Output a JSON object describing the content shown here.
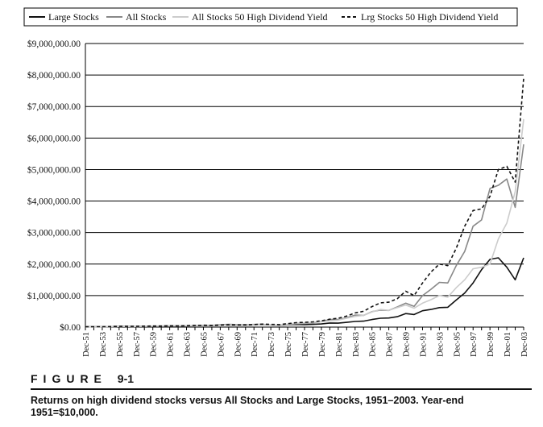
{
  "chart_data": {
    "type": "line",
    "title": "",
    "xlabel": "",
    "ylabel": "",
    "ylim": [
      0,
      9000000
    ],
    "yticks": [
      "$0.00",
      "$1,000,000.00",
      "$2,000,000.00",
      "$3,000,000.00",
      "$4,000,000.00",
      "$5,000,000.00",
      "$6,000,000.00",
      "$7,000,000.00",
      "$8,000,000.00",
      "$9,000,000.00"
    ],
    "ytick_values": [
      0,
      1000000,
      2000000,
      3000000,
      4000000,
      5000000,
      6000000,
      7000000,
      8000000,
      9000000
    ],
    "x": [
      "Dec-51",
      "Dec-52",
      "Dec-53",
      "Dec-54",
      "Dec-55",
      "Dec-56",
      "Dec-57",
      "Dec-58",
      "Dec-59",
      "Dec-60",
      "Dec-61",
      "Dec-62",
      "Dec-63",
      "Dec-64",
      "Dec-65",
      "Dec-66",
      "Dec-67",
      "Dec-68",
      "Dec-69",
      "Dec-70",
      "Dec-71",
      "Dec-72",
      "Dec-73",
      "Dec-74",
      "Dec-75",
      "Dec-76",
      "Dec-77",
      "Dec-78",
      "Dec-79",
      "Dec-80",
      "Dec-81",
      "Dec-82",
      "Dec-83",
      "Dec-84",
      "Dec-85",
      "Dec-86",
      "Dec-87",
      "Dec-88",
      "Dec-89",
      "Dec-90",
      "Dec-91",
      "Dec-92",
      "Dec-93",
      "Dec-94",
      "Dec-95",
      "Dec-96",
      "Dec-97",
      "Dec-98",
      "Dec-99",
      "Dec-00",
      "Dec-01",
      "Dec-02",
      "Dec-03"
    ],
    "x_tick_labels": [
      "Dec-51",
      "Dec-53",
      "Dec-55",
      "Dec-57",
      "Dec-59",
      "Dec-61",
      "Dec-63",
      "Dec-65",
      "Dec-67",
      "Dec-69",
      "Dec-71",
      "Dec-73",
      "Dec-75",
      "Dec-77",
      "Dec-79",
      "Dec-81",
      "Dec-83",
      "Dec-85",
      "Dec-87",
      "Dec-89",
      "Dec-91",
      "Dec-93",
      "Dec-95",
      "Dec-97",
      "Dec-99",
      "Dec-01",
      "Dec-03"
    ],
    "legend_position": "top",
    "series": [
      {
        "name": "Large Stocks",
        "color": "#111111",
        "dash": "solid",
        "values": [
          10000,
          12000,
          12500,
          18000,
          22000,
          23000,
          21000,
          29000,
          31000,
          30000,
          36000,
          34000,
          40000,
          45000,
          50000,
          48000,
          57000,
          62000,
          59000,
          60000,
          68000,
          80000,
          70000,
          55000,
          72000,
          85000,
          80000,
          87000,
          100000,
          130000,
          125000,
          150000,
          180000,
          190000,
          240000,
          280000,
          290000,
          330000,
          430000,
          400000,
          520000,
          560000,
          620000,
          630000,
          860000,
          1080000,
          1400000,
          1820000,
          2150000,
          2200000,
          1900000,
          1500000,
          2200000
        ]
      },
      {
        "name": "All Stocks",
        "color": "#888888",
        "dash": "solid",
        "values": [
          10000,
          11500,
          11000,
          17000,
          20000,
          21000,
          19000,
          29000,
          33000,
          32000,
          40000,
          35000,
          42000,
          49000,
          58000,
          55000,
          75000,
          90000,
          78000,
          74000,
          85000,
          90000,
          68000,
          50000,
          75000,
          105000,
          115000,
          135000,
          180000,
          240000,
          240000,
          300000,
          380000,
          370000,
          490000,
          540000,
          530000,
          640000,
          760000,
          660000,
          1000000,
          1200000,
          1420000,
          1400000,
          1950000,
          2400000,
          3200000,
          3400000,
          4400000,
          4500000,
          4700000,
          3800000,
          5800000
        ]
      },
      {
        "name": "All Stocks 50 High Dividend Yield",
        "color": "#cccccc",
        "dash": "solid",
        "values": [
          10000,
          11500,
          12000,
          17000,
          20000,
          21000,
          21000,
          28000,
          31000,
          30000,
          37000,
          35000,
          41000,
          46000,
          51000,
          50000,
          57000,
          67000,
          63000,
          64000,
          70000,
          78000,
          76000,
          70000,
          95000,
          125000,
          135000,
          150000,
          170000,
          200000,
          220000,
          280000,
          340000,
          370000,
          480000,
          560000,
          530000,
          620000,
          700000,
          600000,
          760000,
          870000,
          1000000,
          950000,
          1250000,
          1500000,
          1850000,
          1900000,
          2000000,
          2800000,
          3300000,
          4300000,
          6600000
        ]
      },
      {
        "name": "Lrg Stocks 50 High Dividend Yield",
        "color": "#111111",
        "dash": "dashed",
        "values": [
          10000,
          12000,
          13000,
          19000,
          23000,
          24000,
          23000,
          31000,
          34000,
          34000,
          41000,
          39000,
          47000,
          53000,
          58000,
          56000,
          64000,
          73000,
          70000,
          72000,
          82000,
          94000,
          86000,
          80000,
          110000,
          140000,
          150000,
          165000,
          200000,
          250000,
          280000,
          350000,
          450000,
          500000,
          650000,
          770000,
          790000,
          900000,
          1140000,
          1000000,
          1400000,
          1750000,
          2000000,
          1950000,
          2500000,
          3200000,
          3700000,
          3750000,
          4150000,
          5000000,
          5100000,
          4600000,
          7900000
        ]
      }
    ]
  },
  "figure": {
    "label_letters": "FIGURE",
    "number": "9-1",
    "caption": "Returns on high dividend stocks versus All Stocks and Large Stocks, 1951–2003. Year-end 1951=$10,000."
  }
}
